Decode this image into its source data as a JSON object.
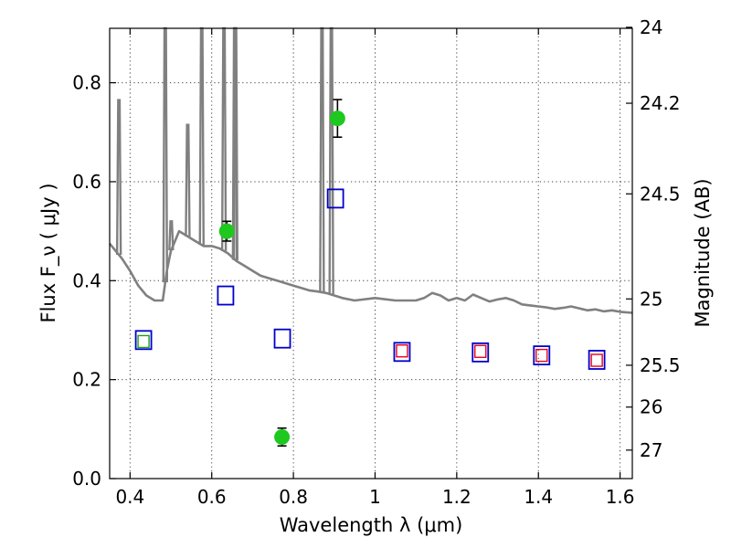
{
  "chart_data": {
    "type": "scatter",
    "title": "",
    "xlabel": "Wavelength  λ (μm)",
    "ylabel": "Flux  F_ν  ( μJy )",
    "ylabel_right": "Magnitude (AB)",
    "xlim": [
      0.35,
      1.63
    ],
    "ylim": [
      0.0,
      0.91
    ],
    "xticks": [
      "0.4",
      "0.6",
      "0.8",
      "1",
      "1.2",
      "1.4",
      "1.6"
    ],
    "yticks": [
      "0.0",
      "0.2",
      "0.4",
      "0.6",
      "0.8"
    ],
    "right_ticks": [
      {
        "label": "24",
        "mag": 24.0
      },
      {
        "label": "24.2",
        "mag": 24.2
      },
      {
        "label": "24.5",
        "mag": 24.5
      },
      {
        "label": "25",
        "mag": 25.0
      },
      {
        "label": "25.5",
        "mag": 25.5
      },
      {
        "label": "26",
        "mag": 26.0
      },
      {
        "label": "27",
        "mag": 27.0
      }
    ],
    "grid": true,
    "colors": {
      "spectrum": "#808080",
      "observed": "#1ec81e",
      "model_blue": "#0000cc",
      "model_red": "#e8001c",
      "model_green": "#1e9e1e"
    },
    "series": [
      {
        "kind": "line",
        "color": "#808080",
        "x": [
          0.35,
          0.37,
          0.38,
          0.4,
          0.42,
          0.44,
          0.46,
          0.48,
          0.49,
          0.5,
          0.51,
          0.52,
          0.54,
          0.56,
          0.58,
          0.6,
          0.62,
          0.64,
          0.66,
          0.68,
          0.7,
          0.72,
          0.74,
          0.76,
          0.78,
          0.8,
          0.82,
          0.84,
          0.86,
          0.88,
          0.9,
          0.92,
          0.95,
          1.0,
          1.05,
          1.1,
          1.12,
          1.14,
          1.16,
          1.18,
          1.2,
          1.22,
          1.24,
          1.26,
          1.28,
          1.3,
          1.32,
          1.34,
          1.36,
          1.38,
          1.4,
          1.42,
          1.44,
          1.46,
          1.48,
          1.5,
          1.52,
          1.54,
          1.56,
          1.58,
          1.6,
          1.63
        ],
        "y": [
          0.475,
          0.455,
          0.445,
          0.42,
          0.39,
          0.37,
          0.36,
          0.36,
          0.42,
          0.46,
          0.48,
          0.5,
          0.49,
          0.48,
          0.47,
          0.47,
          0.465,
          0.455,
          0.44,
          0.43,
          0.42,
          0.41,
          0.405,
          0.4,
          0.395,
          0.39,
          0.385,
          0.38,
          0.378,
          0.375,
          0.37,
          0.365,
          0.36,
          0.365,
          0.36,
          0.36,
          0.365,
          0.375,
          0.37,
          0.36,
          0.365,
          0.36,
          0.372,
          0.365,
          0.358,
          0.362,
          0.365,
          0.36,
          0.352,
          0.35,
          0.348,
          0.346,
          0.343,
          0.345,
          0.348,
          0.344,
          0.34,
          0.342,
          0.338,
          0.34,
          0.337,
          0.335
        ]
      },
      {
        "kind": "emission-lines",
        "color": "#808080",
        "lines": [
          {
            "x": 0.3727,
            "peak": 0.765
          },
          {
            "x": 0.4861,
            "peak": 0.91
          },
          {
            "x": 0.5007,
            "peak": 0.52
          },
          {
            "x": 0.5412,
            "peak": 0.715
          },
          {
            "x": 0.5755,
            "peak": 0.91
          },
          {
            "x": 0.6563,
            "peak": 0.91
          },
          {
            "x": 0.6583,
            "peak": 0.91
          },
          {
            "x": 0.63,
            "peak": 0.91
          },
          {
            "x": 0.87,
            "peak": 0.91
          },
          {
            "x": 0.893,
            "peak": 0.91
          }
        ]
      },
      {
        "kind": "errorbar",
        "color": "#1ec81e",
        "points": [
          {
            "x": 0.637,
            "y": 0.5,
            "err": 0.02
          },
          {
            "x": 0.772,
            "y": 0.084,
            "err": 0.018
          },
          {
            "x": 0.908,
            "y": 0.728,
            "err": 0.038
          }
        ]
      },
      {
        "kind": "open-square",
        "color": "#0000cc",
        "points": [
          {
            "x": 0.433,
            "y": 0.28
          },
          {
            "x": 0.634,
            "y": 0.37
          },
          {
            "x": 0.773,
            "y": 0.283
          },
          {
            "x": 0.903,
            "y": 0.566
          },
          {
            "x": 1.066,
            "y": 0.256
          },
          {
            "x": 1.258,
            "y": 0.255
          },
          {
            "x": 1.408,
            "y": 0.249
          },
          {
            "x": 1.543,
            "y": 0.24
          }
        ]
      },
      {
        "kind": "small-square",
        "color": "#e8001c",
        "points": [
          {
            "x": 1.066,
            "y": 0.258
          },
          {
            "x": 1.258,
            "y": 0.257
          },
          {
            "x": 1.408,
            "y": 0.249
          },
          {
            "x": 1.543,
            "y": 0.239
          }
        ]
      },
      {
        "kind": "small-square",
        "color": "#1e9e1e",
        "points": [
          {
            "x": 0.433,
            "y": 0.277
          }
        ]
      }
    ]
  }
}
